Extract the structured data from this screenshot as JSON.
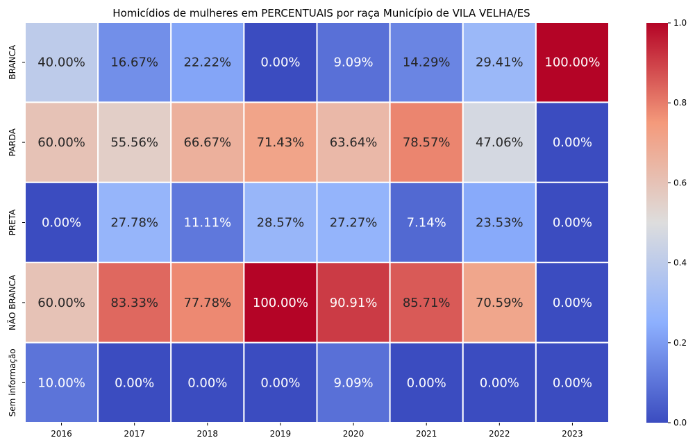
{
  "chart_data": {
    "type": "heatmap",
    "title": "Homicídios de mulheres em PERCENTUAIS por raça Município de VILA VELHA/ES",
    "xlabel": "",
    "ylabel": "",
    "x_categories": [
      "2016",
      "2017",
      "2018",
      "2019",
      "2020",
      "2021",
      "2022",
      "2023"
    ],
    "y_categories": [
      "BRANCA",
      "PARDA",
      "PRETA",
      "NÃO BRANCA",
      "Sem informação"
    ],
    "values": [
      [
        0.4,
        0.1667,
        0.2222,
        0.0,
        0.0909,
        0.1429,
        0.2941,
        1.0
      ],
      [
        0.6,
        0.5556,
        0.6667,
        0.7143,
        0.6364,
        0.7857,
        0.4706,
        0.0
      ],
      [
        0.0,
        0.2778,
        0.1111,
        0.2857,
        0.2727,
        0.0714,
        0.2353,
        0.0
      ],
      [
        0.6,
        0.8333,
        0.7778,
        1.0,
        0.9091,
        0.8571,
        0.7059,
        0.0
      ],
      [
        0.1,
        0.0,
        0.0,
        0.0,
        0.0909,
        0.0,
        0.0,
        0.0
      ]
    ],
    "labels": [
      [
        "40.00%",
        "16.67%",
        "22.22%",
        "0.00%",
        "9.09%",
        "14.29%",
        "29.41%",
        "100.00%"
      ],
      [
        "60.00%",
        "55.56%",
        "66.67%",
        "71.43%",
        "63.64%",
        "78.57%",
        "47.06%",
        "0.00%"
      ],
      [
        "0.00%",
        "27.78%",
        "11.11%",
        "28.57%",
        "27.27%",
        "7.14%",
        "23.53%",
        "0.00%"
      ],
      [
        "60.00%",
        "83.33%",
        "77.78%",
        "100.00%",
        "90.91%",
        "85.71%",
        "70.59%",
        "0.00%"
      ],
      [
        "10.00%",
        "0.00%",
        "0.00%",
        "0.00%",
        "9.09%",
        "0.00%",
        "0.00%",
        "0.00%"
      ]
    ],
    "colormap": "coolwarm",
    "colorbar": {
      "range": [
        0,
        1
      ],
      "ticks": [
        "0.0",
        "0.2",
        "0.4",
        "0.6",
        "0.8",
        "1.0"
      ],
      "placement": "right"
    },
    "grid": false,
    "legend": "colorbar-right"
  }
}
